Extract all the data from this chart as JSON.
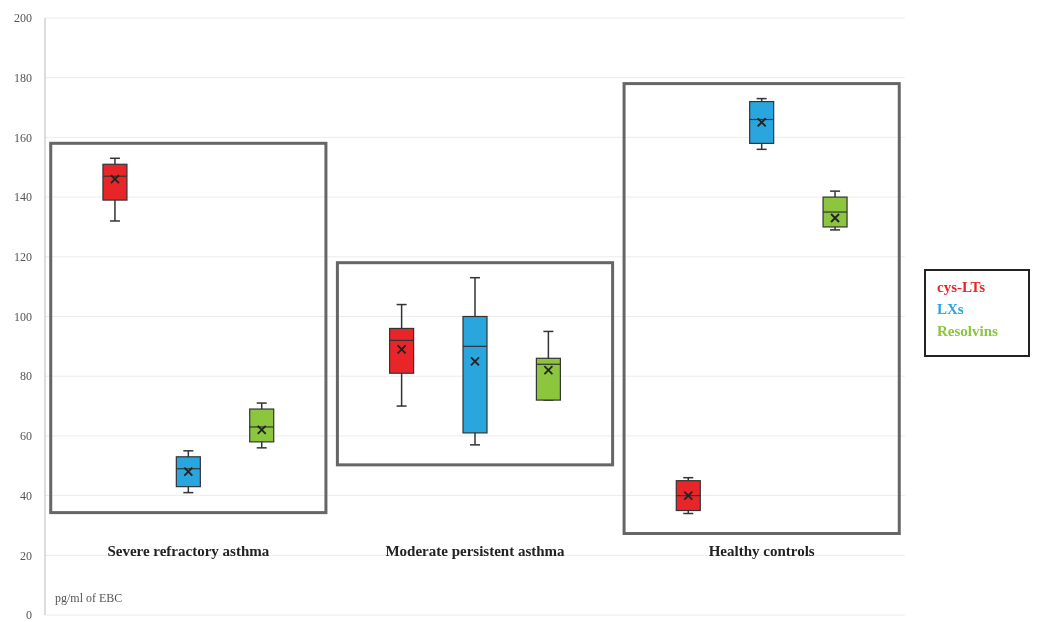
{
  "chart_data": {
    "type": "box",
    "categories": [
      "Severe refractory asthma",
      "Moderate persistent asthma",
      "Healthy controls"
    ],
    "ylim": [
      0,
      200
    ],
    "yticks": [
      0,
      20,
      40,
      60,
      80,
      100,
      120,
      140,
      160,
      180,
      200
    ],
    "grid": "y",
    "legend": "right",
    "annotations": [
      "pg/ml of EBC"
    ],
    "series": [
      {
        "name": "cys-LTs",
        "color": "#e8262a",
        "boxes": [
          {
            "low": 132,
            "q1": 139,
            "median": 147,
            "q3": 151,
            "high": 153,
            "mean": 146
          },
          {
            "low": 70,
            "q1": 81,
            "median": 92,
            "q3": 96,
            "high": 104,
            "mean": 89
          },
          {
            "low": 34,
            "q1": 35,
            "median": 40,
            "q3": 45,
            "high": 46,
            "mean": 40
          }
        ]
      },
      {
        "name": "LXs",
        "color": "#2aa6de",
        "boxes": [
          {
            "low": 41,
            "q1": 43,
            "median": 49,
            "q3": 53,
            "high": 55,
            "mean": 48
          },
          {
            "low": 57,
            "q1": 61,
            "median": 90,
            "q3": 100,
            "high": 113,
            "mean": 85
          },
          {
            "low": 156,
            "q1": 158,
            "median": 166,
            "q3": 172,
            "high": 173,
            "mean": 165
          }
        ]
      },
      {
        "name": "Resolvins",
        "color": "#8cc63f",
        "boxes": [
          {
            "low": 56,
            "q1": 58,
            "median": 63,
            "q3": 69,
            "high": 71,
            "mean": 62
          },
          {
            "low": 72,
            "q1": 72,
            "median": 84,
            "q3": 86,
            "high": 95,
            "mean": 82
          },
          {
            "low": 129,
            "q1": 130,
            "median": 135,
            "q3": 140,
            "high": 142,
            "mean": 133
          }
        ]
      }
    ]
  }
}
